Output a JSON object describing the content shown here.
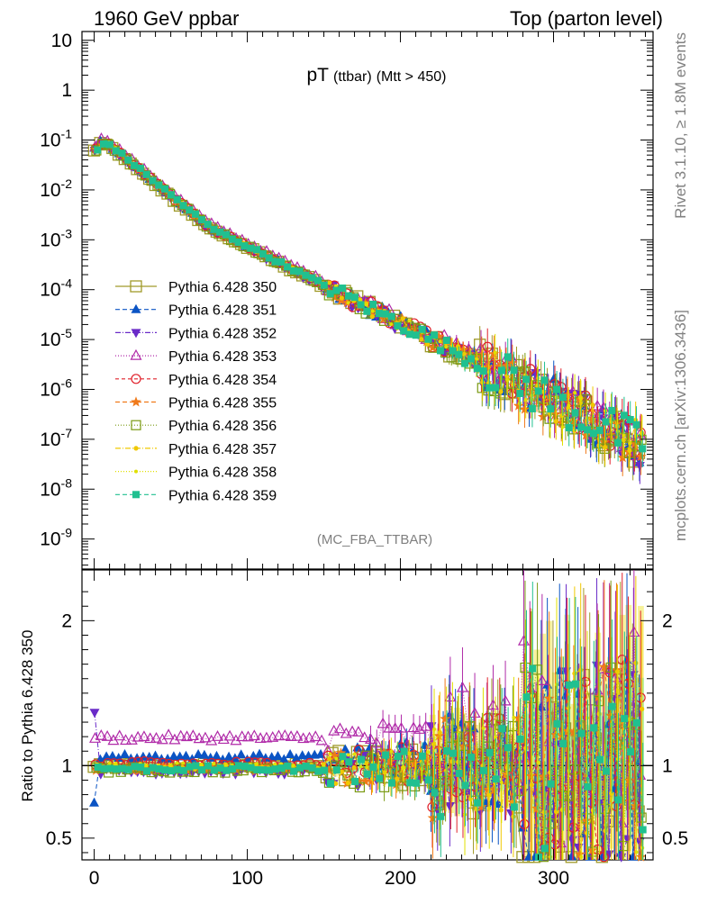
{
  "header": {
    "left": "1960 GeV ppbar",
    "right": "Top (parton level)"
  },
  "side": {
    "rivet": "Rivet 3.1.10, ≥ 1.8M events",
    "source": "mcplots.cern.ch [arXiv:1306.3436]"
  },
  "main_title": {
    "main": "pT",
    "sub1": "(ttbar)",
    "sub2": "(Mtt > 450)"
  },
  "analysis_tag": "(MC_FBA_TTBAR)",
  "ratio_ylabel": "Ratio to Pythia 6.428 350",
  "colors": {
    "350": "#a09a2a",
    "351": "#0b54c4",
    "352": "#6a2bc8",
    "353": "#b02aa8",
    "354": "#e0202a",
    "355": "#f07a1a",
    "356": "#7a9a12",
    "357": "#f0c800",
    "358": "#e0e000",
    "359": "#20c090"
  },
  "chart_data": {
    "type": "scatter",
    "x_range": [
      -8,
      365
    ],
    "x_ticks": [
      "0",
      "100",
      "200",
      "300"
    ],
    "main": {
      "yscale": "log",
      "ylim": [
        2.5e-10,
        15
      ],
      "y_ticks": [
        "10",
        "1",
        "10^-1",
        "10^-2",
        "10^-3",
        "10^-4",
        "10^-5",
        "10^-6",
        "10^-7",
        "10^-8",
        "10^-9"
      ],
      "model": {
        "peak_x": 6,
        "peak_y": 0.09,
        "tail_start_x": 12,
        "tail_start_y": 0.07,
        "slope_low": -0.0253,
        "slope_mid": -0.0155,
        "knee_x": 75
      }
    },
    "ratio": {
      "ylim": [
        0.35,
        2.35
      ],
      "y_ticks": [
        "0.5",
        "1",
        "2"
      ],
      "reference": 1
    },
    "legend": {
      "placement": "left",
      "entries": [
        "Pythia 6.428 350",
        "Pythia 6.428 351",
        "Pythia 6.428 352",
        "Pythia 6.428 353",
        "Pythia 6.428 354",
        "Pythia 6.428 355",
        "Pythia 6.428 356",
        "Pythia 6.428 357",
        "Pythia 6.428 358",
        "Pythia 6.428 359"
      ]
    },
    "series": [
      {
        "name": "Pythia 6.428 350",
        "key": "350",
        "marker": "square-open",
        "dash": "",
        "ratio_level": 1.0
      },
      {
        "name": "Pythia 6.428 351",
        "key": "351",
        "marker": "triangle-up",
        "dash": "5,3",
        "ratio_level": 1.06
      },
      {
        "name": "Pythia 6.428 352",
        "key": "352",
        "marker": "triangle-down",
        "dash": "6,2,1,2",
        "ratio_level": 0.96
      },
      {
        "name": "Pythia 6.428 353",
        "key": "353",
        "marker": "triangle-open",
        "dash": "1,2",
        "ratio_level": 1.19
      },
      {
        "name": "Pythia 6.428 354",
        "key": "354",
        "marker": "circle-open",
        "dash": "4,3",
        "ratio_level": 1.01
      },
      {
        "name": "Pythia 6.428 355",
        "key": "355",
        "marker": "star",
        "dash": "5,3",
        "ratio_level": 0.98
      },
      {
        "name": "Pythia 6.428 356",
        "key": "356",
        "marker": "square-open-small",
        "dash": "1,2",
        "ratio_level": 0.97
      },
      {
        "name": "Pythia 6.428 357",
        "key": "357",
        "marker": "dot",
        "dash": "6,2,1,2",
        "ratio_level": 0.99
      },
      {
        "name": "Pythia 6.428 358",
        "key": "358",
        "marker": "dot-small",
        "dash": "1,2",
        "ratio_level": 1.0
      },
      {
        "name": "Pythia 6.428 359",
        "key": "359",
        "marker": "square-filled",
        "dash": "5,3",
        "ratio_level": 0.98
      }
    ]
  }
}
